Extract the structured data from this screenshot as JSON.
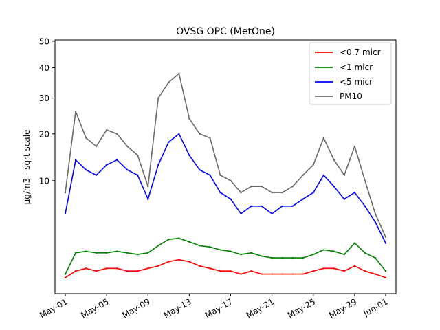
{
  "chart_data": {
    "type": "line",
    "title": "OVSG OPC (MetOne)",
    "xlabel": "",
    "ylabel": "µg/m3 - sqrt scale",
    "y_scale": "sqrt",
    "ylim": [
      0,
      50.5
    ],
    "xlim": [
      "2024-04-30",
      "2024-06-02"
    ],
    "grid": false,
    "legend_position": "top-right",
    "x_ticks": [
      "May-01",
      "May-05",
      "May-09",
      "May-13",
      "May-17",
      "May-21",
      "May-25",
      "May-29",
      "Jun-01"
    ],
    "x_tick_dates": [
      "2024-05-01",
      "2024-05-05",
      "2024-05-09",
      "2024-05-13",
      "2024-05-17",
      "2024-05-21",
      "2024-05-25",
      "2024-05-29",
      "2024-06-01"
    ],
    "y_ticks": [
      10,
      20,
      30,
      40,
      50
    ],
    "x": [
      "2024-05-01",
      "2024-05-02",
      "2024-05-03",
      "2024-05-04",
      "2024-05-05",
      "2024-05-06",
      "2024-05-07",
      "2024-05-08",
      "2024-05-09",
      "2024-05-10",
      "2024-05-11",
      "2024-05-12",
      "2024-05-13",
      "2024-05-14",
      "2024-05-15",
      "2024-05-16",
      "2024-05-17",
      "2024-05-18",
      "2024-05-19",
      "2024-05-20",
      "2024-05-21",
      "2024-05-22",
      "2024-05-23",
      "2024-05-24",
      "2024-05-25",
      "2024-05-26",
      "2024-05-27",
      "2024-05-28",
      "2024-05-29",
      "2024-05-30",
      "2024-05-31",
      "2024-06-01"
    ],
    "series": [
      {
        "name": "<0.7 micr",
        "color": "#ff0000",
        "values": [
          0.2,
          0.4,
          0.5,
          0.4,
          0.5,
          0.5,
          0.4,
          0.4,
          0.5,
          0.6,
          0.8,
          0.9,
          0.8,
          0.6,
          0.5,
          0.4,
          0.4,
          0.3,
          0.4,
          0.3,
          0.3,
          0.3,
          0.3,
          0.3,
          0.4,
          0.5,
          0.5,
          0.4,
          0.6,
          0.4,
          0.3,
          0.2
        ]
      },
      {
        "name": "<1 micr",
        "color": "#008000",
        "values": [
          0.3,
          1.3,
          1.4,
          1.3,
          1.3,
          1.4,
          1.3,
          1.2,
          1.3,
          1.8,
          2.3,
          2.4,
          2.1,
          1.8,
          1.7,
          1.5,
          1.4,
          1.2,
          1.3,
          1.1,
          1.0,
          1.0,
          1.0,
          1.0,
          1.2,
          1.5,
          1.4,
          1.2,
          2.0,
          1.3,
          1.0,
          0.4
        ]
      },
      {
        "name": "<5 micr",
        "color": "#0000ff",
        "values": [
          5.0,
          14.0,
          12.0,
          11.0,
          13.0,
          14.0,
          12.0,
          11.0,
          7.0,
          13.0,
          18.0,
          20.0,
          15.0,
          12.0,
          11.0,
          8.0,
          7.0,
          5.0,
          6.0,
          6.0,
          5.0,
          6.0,
          6.0,
          7.0,
          8.0,
          11.0,
          9.0,
          7.0,
          8.0,
          6.0,
          4.0,
          2.0
        ]
      },
      {
        "name": "PM10",
        "color": "#696969",
        "values": [
          8.0,
          26.0,
          19.0,
          17.0,
          21.0,
          20.0,
          17.0,
          15.0,
          9.0,
          30.0,
          35.0,
          38.0,
          24.0,
          20.0,
          19.0,
          11.0,
          10.0,
          8.0,
          9.0,
          9.0,
          8.0,
          8.0,
          9.0,
          11.0,
          13.0,
          19.0,
          14.0,
          11.0,
          17.0,
          10.0,
          5.0,
          2.5
        ]
      }
    ]
  }
}
